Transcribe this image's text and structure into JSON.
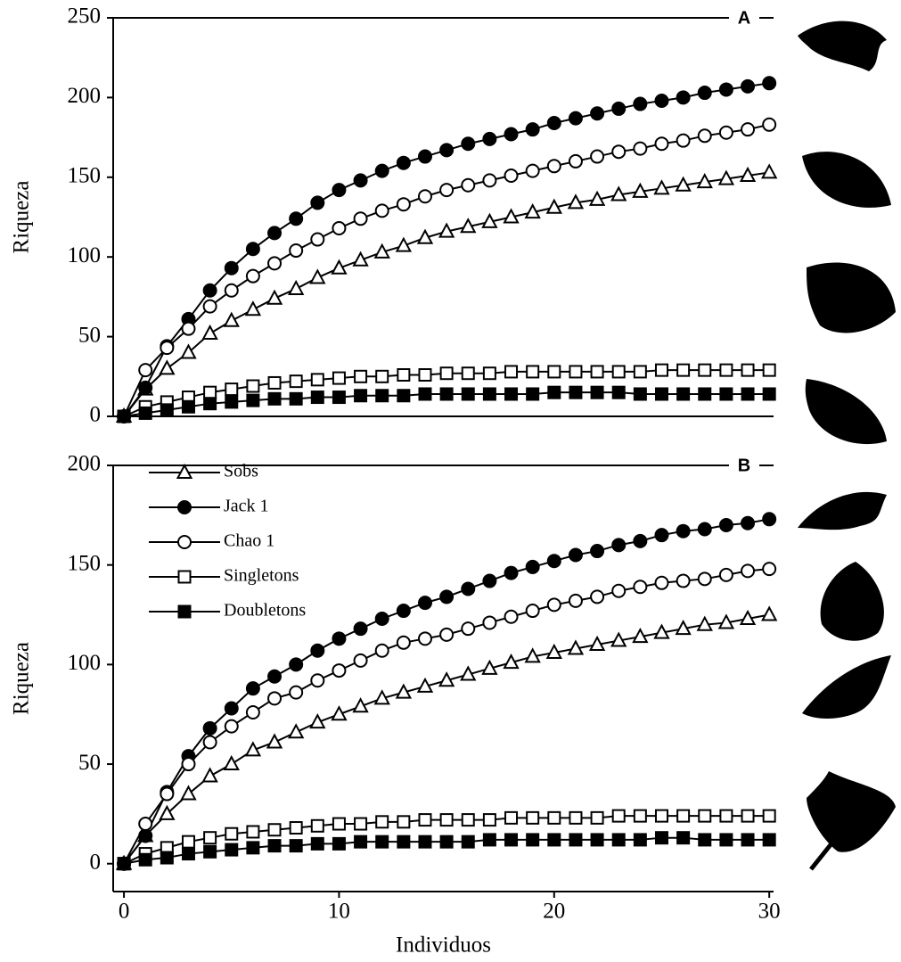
{
  "chart_data": [
    {
      "type": "line",
      "panel_label": "A",
      "ylabel": "Riqueza",
      "x": [
        0,
        1,
        2,
        3,
        4,
        5,
        6,
        7,
        8,
        9,
        10,
        11,
        12,
        13,
        14,
        15,
        16,
        17,
        18,
        19,
        20,
        21,
        22,
        23,
        24,
        25,
        26,
        27,
        28,
        29,
        30
      ],
      "xlim": [
        -0.5,
        30.2
      ],
      "ylim": [
        0,
        250
      ],
      "yticks": [
        0,
        50,
        100,
        150,
        200,
        250
      ],
      "series": [
        {
          "marker": "triangle",
          "filled": false,
          "color": "#000000",
          "values": [
            0,
            17,
            30,
            40,
            52,
            60,
            67,
            74,
            80,
            87,
            93,
            98,
            103,
            107,
            112,
            116,
            119,
            122,
            125,
            128,
            131,
            134,
            136,
            139,
            141,
            143,
            145,
            147,
            149,
            151,
            153
          ]
        },
        {
          "marker": "circle",
          "filled": true,
          "color": "#000000",
          "values": [
            0,
            18,
            44,
            61,
            79,
            93,
            105,
            115,
            124,
            134,
            142,
            148,
            154,
            159,
            163,
            167,
            171,
            174,
            177,
            180,
            184,
            187,
            190,
            193,
            196,
            198,
            200,
            203,
            205,
            207,
            209
          ]
        },
        {
          "marker": "circle",
          "filled": false,
          "color": "#000000",
          "values": [
            0,
            29,
            43,
            55,
            69,
            79,
            88,
            96,
            104,
            111,
            118,
            124,
            129,
            133,
            138,
            142,
            145,
            148,
            151,
            154,
            157,
            160,
            163,
            166,
            168,
            171,
            173,
            176,
            178,
            180,
            183
          ]
        },
        {
          "marker": "square",
          "filled": false,
          "color": "#000000",
          "values": [
            0,
            6,
            9,
            12,
            15,
            17,
            19,
            21,
            22,
            23,
            24,
            25,
            25,
            26,
            26,
            27,
            27,
            27,
            28,
            28,
            28,
            28,
            28,
            28,
            28,
            29,
            29,
            29,
            29,
            29,
            29
          ]
        },
        {
          "marker": "square",
          "filled": true,
          "color": "#000000",
          "values": [
            0,
            2,
            4,
            6,
            8,
            9,
            10,
            11,
            11,
            12,
            12,
            13,
            13,
            13,
            14,
            14,
            14,
            14,
            14,
            14,
            15,
            15,
            15,
            15,
            14,
            14,
            14,
            14,
            14,
            14,
            14
          ]
        }
      ]
    },
    {
      "type": "line",
      "panel_label": "B",
      "ylabel": "Riqueza",
      "xlabel": "Individuos",
      "x": [
        0,
        1,
        2,
        3,
        4,
        5,
        6,
        7,
        8,
        9,
        10,
        11,
        12,
        13,
        14,
        15,
        16,
        17,
        18,
        19,
        20,
        21,
        22,
        23,
        24,
        25,
        26,
        27,
        28,
        29,
        30
      ],
      "xlim": [
        -0.5,
        30.2
      ],
      "xticks": [
        0,
        10,
        20,
        30
      ],
      "ylim": [
        -14,
        200
      ],
      "yticks": [
        0,
        50,
        100,
        150,
        200
      ],
      "legend": "upper left",
      "series": [
        {
          "name": "Sobs",
          "marker": "triangle",
          "filled": false,
          "color": "#000000",
          "values": [
            0,
            14,
            25,
            35,
            44,
            50,
            57,
            61,
            66,
            71,
            75,
            79,
            83,
            86,
            89,
            92,
            95,
            98,
            101,
            104,
            106,
            108,
            110,
            112,
            114,
            116,
            118,
            120,
            121,
            123,
            125
          ]
        },
        {
          "name": "Jack 1",
          "marker": "circle",
          "filled": true,
          "color": "#000000",
          "values": [
            0,
            14,
            36,
            54,
            68,
            78,
            88,
            94,
            100,
            107,
            113,
            118,
            123,
            127,
            131,
            134,
            138,
            142,
            146,
            149,
            152,
            155,
            157,
            160,
            162,
            165,
            167,
            168,
            170,
            171,
            173
          ]
        },
        {
          "name": "Chao 1",
          "marker": "circle",
          "filled": false,
          "color": "#000000",
          "values": [
            0,
            20,
            35,
            50,
            61,
            69,
            76,
            83,
            86,
            92,
            97,
            102,
            107,
            111,
            113,
            115,
            118,
            121,
            124,
            127,
            130,
            132,
            134,
            137,
            139,
            141,
            142,
            143,
            145,
            147,
            148
          ]
        },
        {
          "name": "Singletons",
          "marker": "square",
          "filled": false,
          "color": "#000000",
          "values": [
            0,
            5,
            8,
            11,
            13,
            15,
            16,
            17,
            18,
            19,
            20,
            20,
            21,
            21,
            22,
            22,
            22,
            22,
            23,
            23,
            23,
            23,
            23,
            24,
            24,
            24,
            24,
            24,
            24,
            24,
            24
          ]
        },
        {
          "name": "Doubletons",
          "marker": "square",
          "filled": true,
          "color": "#000000",
          "values": [
            0,
            2,
            3,
            5,
            6,
            7,
            8,
            9,
            9,
            10,
            10,
            11,
            11,
            11,
            11,
            11,
            11,
            12,
            12,
            12,
            12,
            12,
            12,
            12,
            12,
            13,
            13,
            12,
            12,
            12,
            12
          ]
        }
      ]
    }
  ]
}
